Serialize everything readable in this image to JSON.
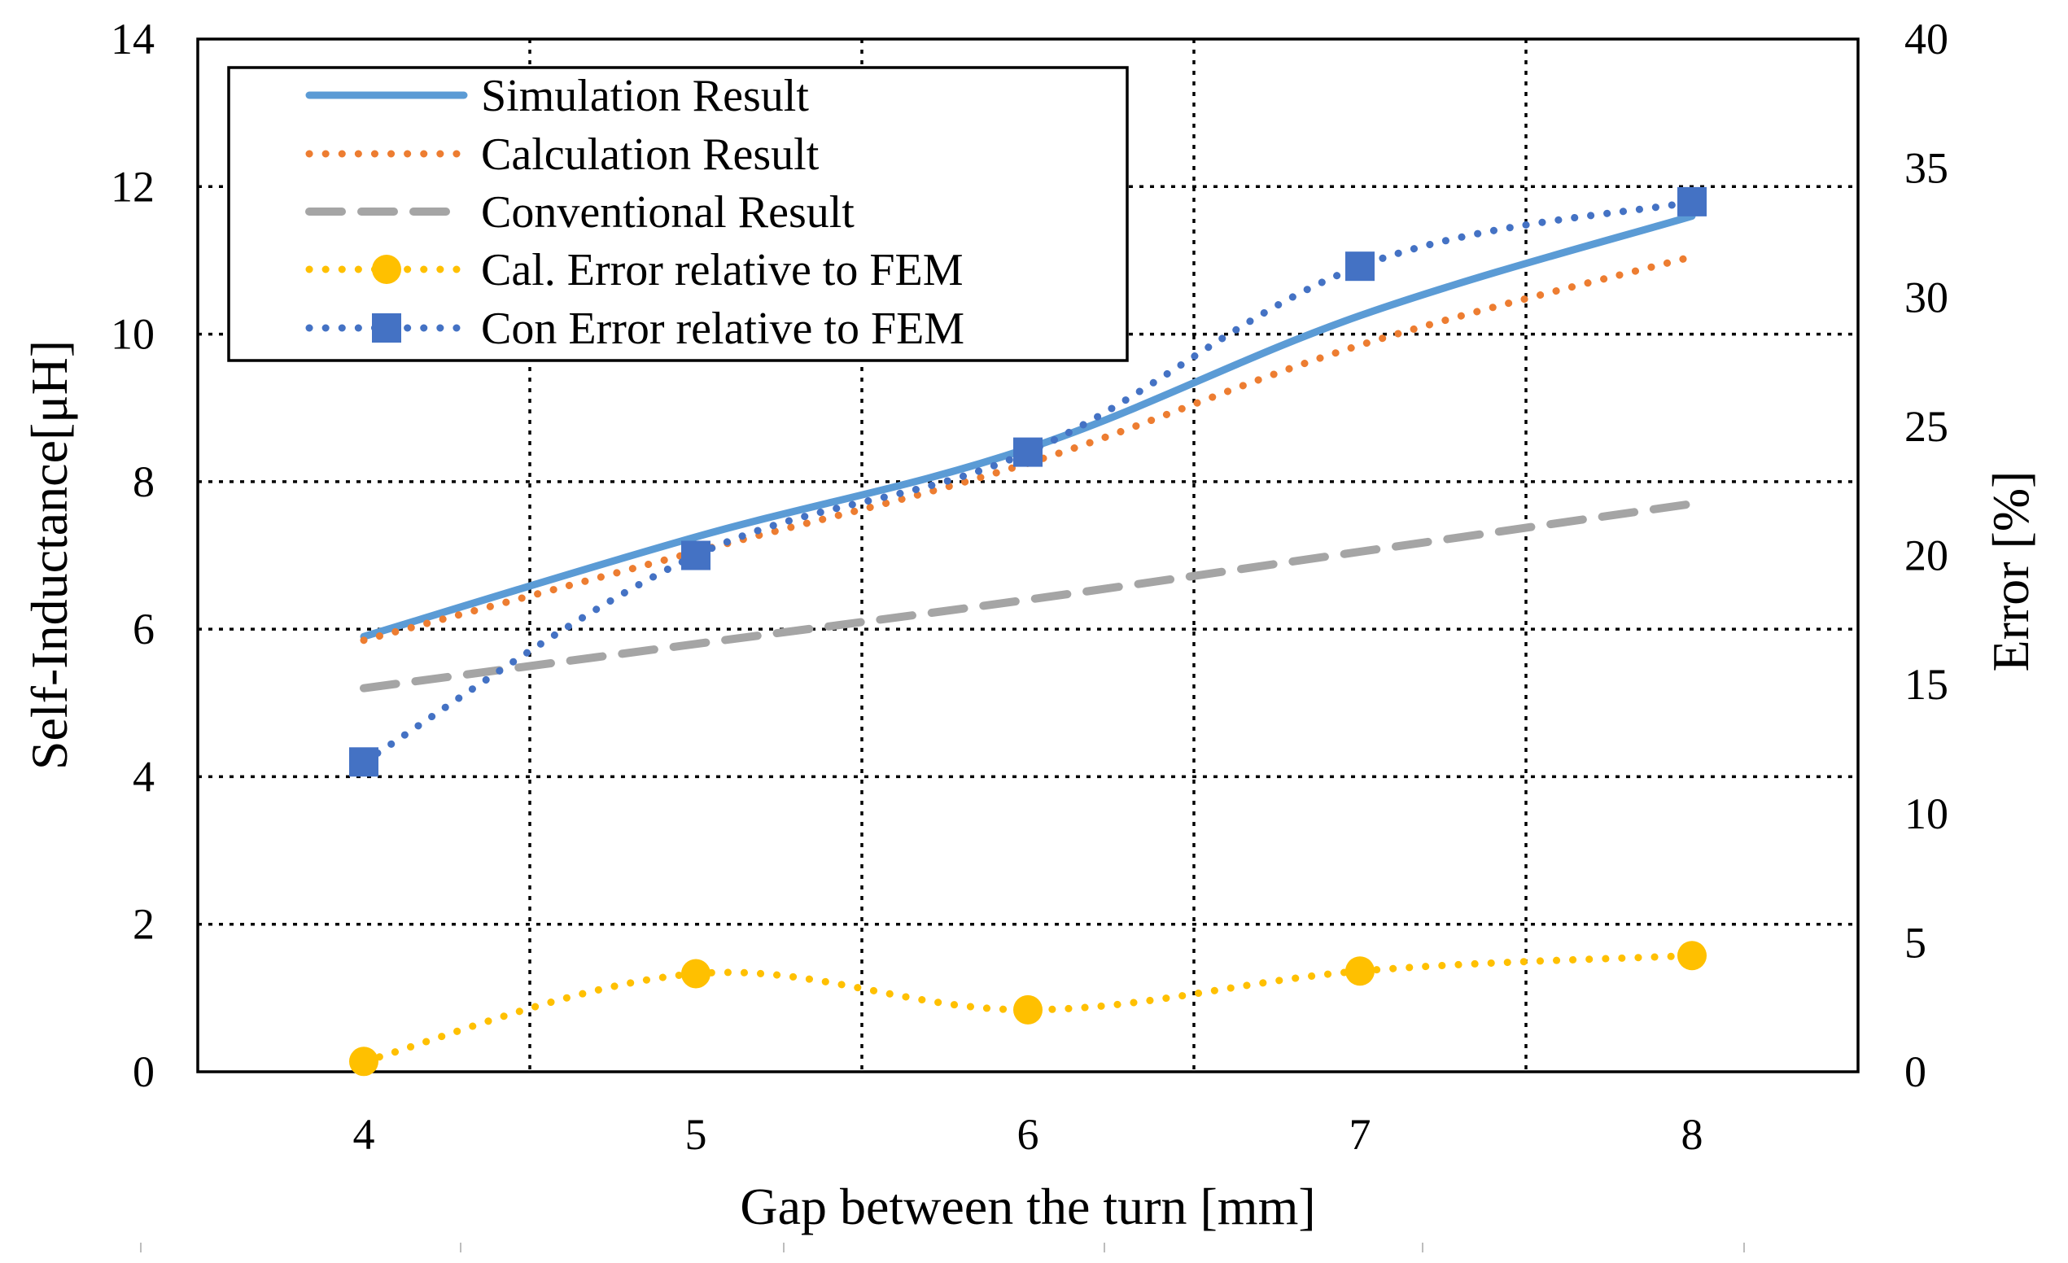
{
  "chart_data": {
    "type": "line",
    "title": "",
    "xlabel": "Gap between the turn [mm]",
    "ylabel": "Self-Inductance[μH]",
    "y2label": "Error [%]",
    "xlim": [
      3.5,
      8.5
    ],
    "ylim": [
      0,
      14
    ],
    "y2lim": [
      0,
      40
    ],
    "x": [
      4,
      5,
      6,
      7,
      8
    ],
    "x_ticks": [
      "4",
      "5",
      "6",
      "7",
      "8"
    ],
    "y_ticks": [
      "0",
      "2",
      "4",
      "6",
      "8",
      "10",
      "12",
      "14"
    ],
    "y2_ticks": [
      "0",
      "5",
      "10",
      "15",
      "20",
      "25",
      "30",
      "35",
      "40"
    ],
    "grid": true,
    "legend_position": "top-left",
    "series": [
      {
        "name": "Simulation Result",
        "axis": "left",
        "style": "solid",
        "color": "#5B9BD5",
        "marker": "none",
        "values": [
          5.9,
          7.25,
          8.45,
          10.25,
          11.6
        ]
      },
      {
        "name": "Calculation Result",
        "axis": "left",
        "style": "dotted",
        "color": "#ED7D31",
        "marker": "none",
        "values": [
          5.85,
          7.05,
          8.25,
          9.85,
          11.05
        ]
      },
      {
        "name": "Conventional Result",
        "axis": "left",
        "style": "dashed",
        "color": "#A5A5A5",
        "marker": "none",
        "values": [
          5.2,
          5.8,
          6.4,
          7.05,
          7.7
        ]
      },
      {
        "name": "Cal. Error relative to FEM",
        "axis": "right",
        "style": "dotted",
        "color": "#FFC000",
        "marker": "circle",
        "values": [
          0.4,
          3.8,
          2.4,
          3.9,
          4.5
        ]
      },
      {
        "name": "Con Error relative to FEM",
        "axis": "right",
        "style": "dotted",
        "color": "#4472C4",
        "marker": "square",
        "values": [
          12.0,
          20.0,
          24.0,
          31.2,
          33.7
        ]
      }
    ]
  }
}
